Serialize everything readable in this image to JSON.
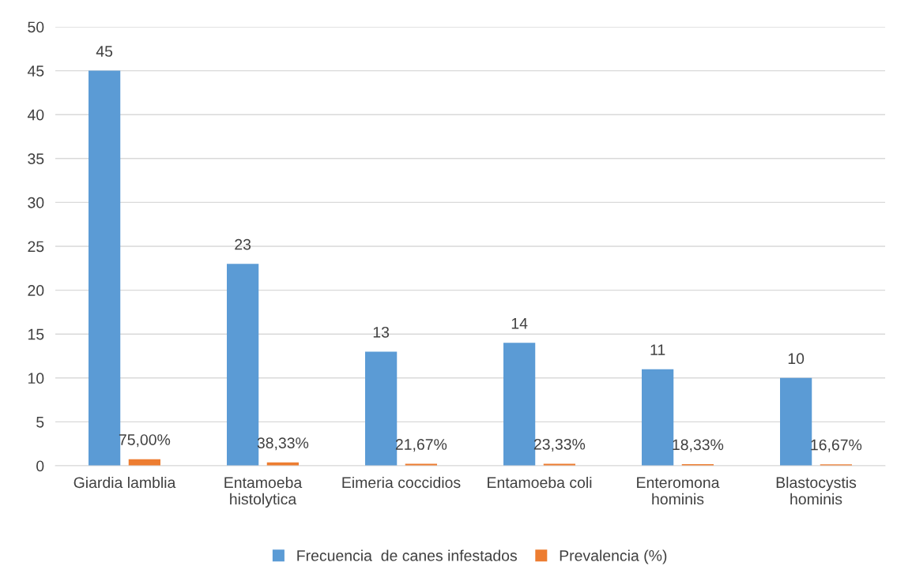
{
  "chart_data": {
    "type": "bar",
    "categories": [
      "Giardia lamblia",
      "Entamoeba\nhistolytica",
      "Eimeria coccidios",
      "Entamoeba coli",
      "Enteromona\nhominis",
      "Blastocystis\nhominis"
    ],
    "series": [
      {
        "name": "Frecuencia  de canes infestados",
        "color": "#5b9bd5",
        "values": [
          45,
          23,
          13,
          14,
          11,
          10
        ],
        "value_labels": [
          "45",
          "23",
          "13",
          "14",
          "11",
          "10"
        ]
      },
      {
        "name": "Prevalencia (%)",
        "color": "#ed7d31",
        "values": [
          0.75,
          0.3833,
          0.2167,
          0.2333,
          0.1833,
          0.1667
        ],
        "value_labels": [
          "75,00%",
          "38,33%",
          "21,67%",
          "23,33%",
          "18,33%",
          "16,67%"
        ]
      }
    ],
    "ylim": [
      0,
      50
    ],
    "yticks": [
      0,
      5,
      10,
      15,
      20,
      25,
      30,
      35,
      40,
      45,
      50
    ],
    "grid": "y",
    "legend": "bottom"
  }
}
